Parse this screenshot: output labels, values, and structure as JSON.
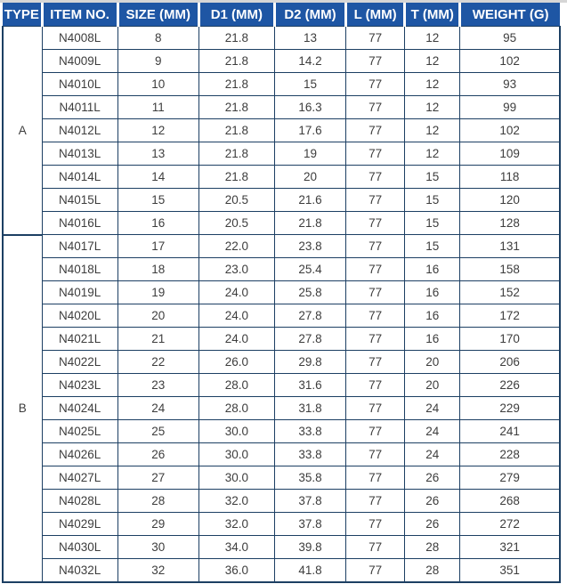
{
  "table": {
    "columns": [
      "TYPE",
      "ITEM NO.",
      "SIZE (MM)",
      "D1 (MM)",
      "D2 (MM)",
      "L (MM)",
      "T (MM)",
      "WEIGHT (G)"
    ],
    "column_keys": [
      "type",
      "item-no",
      "size-mm",
      "d1-mm",
      "d2-mm",
      "l-mm",
      "t-mm",
      "weight-g"
    ],
    "sections": [
      {
        "type": "A",
        "rows": [
          [
            "N4008L",
            "8",
            "21.8",
            "13",
            "77",
            "12",
            "95"
          ],
          [
            "N4009L",
            "9",
            "21.8",
            "14.2",
            "77",
            "12",
            "102"
          ],
          [
            "N4010L",
            "10",
            "21.8",
            "15",
            "77",
            "12",
            "93"
          ],
          [
            "N4011L",
            "11",
            "21.8",
            "16.3",
            "77",
            "12",
            "99"
          ],
          [
            "N4012L",
            "12",
            "21.8",
            "17.6",
            "77",
            "12",
            "102"
          ],
          [
            "N4013L",
            "13",
            "21.8",
            "19",
            "77",
            "12",
            "109"
          ],
          [
            "N4014L",
            "14",
            "21.8",
            "20",
            "77",
            "15",
            "118"
          ],
          [
            "N4015L",
            "15",
            "20.5",
            "21.6",
            "77",
            "15",
            "120"
          ],
          [
            "N4016L",
            "16",
            "20.5",
            "21.8",
            "77",
            "15",
            "128"
          ]
        ]
      },
      {
        "type": "B",
        "rows": [
          [
            "N4017L",
            "17",
            "22.0",
            "23.8",
            "77",
            "15",
            "131"
          ],
          [
            "N4018L",
            "18",
            "23.0",
            "25.4",
            "77",
            "16",
            "158"
          ],
          [
            "N4019L",
            "19",
            "24.0",
            "25.8",
            "77",
            "16",
            "152"
          ],
          [
            "N4020L",
            "20",
            "24.0",
            "27.8",
            "77",
            "16",
            "172"
          ],
          [
            "N4021L",
            "21",
            "24.0",
            "27.8",
            "77",
            "16",
            "170"
          ],
          [
            "N4022L",
            "22",
            "26.0",
            "29.8",
            "77",
            "20",
            "206"
          ],
          [
            "N4023L",
            "23",
            "28.0",
            "31.6",
            "77",
            "20",
            "226"
          ],
          [
            "N4024L",
            "24",
            "28.0",
            "31.8",
            "77",
            "24",
            "229"
          ],
          [
            "N4025L",
            "25",
            "30.0",
            "33.8",
            "77",
            "24",
            "241"
          ],
          [
            "N4026L",
            "26",
            "30.0",
            "33.8",
            "77",
            "24",
            "228"
          ],
          [
            "N4027L",
            "27",
            "30.0",
            "35.8",
            "77",
            "26",
            "279"
          ],
          [
            "N4028L",
            "28",
            "32.0",
            "37.8",
            "77",
            "26",
            "268"
          ],
          [
            "N4029L",
            "29",
            "32.0",
            "37.8",
            "77",
            "26",
            "272"
          ],
          [
            "N4030L",
            "30",
            "34.0",
            "39.8",
            "77",
            "28",
            "321"
          ],
          [
            "N4032L",
            "32",
            "36.0",
            "41.8",
            "77",
            "28",
            "351"
          ]
        ]
      }
    ]
  },
  "chart_data": {
    "type": "table",
    "title": "",
    "columns": [
      "TYPE",
      "ITEM NO.",
      "SIZE (MM)",
      "D1 (MM)",
      "D2 (MM)",
      "L (MM)",
      "T (MM)",
      "WEIGHT (G)"
    ],
    "rows": [
      [
        "A",
        "N4008L",
        8,
        21.8,
        13,
        77,
        12,
        95
      ],
      [
        "A",
        "N4009L",
        9,
        21.8,
        14.2,
        77,
        12,
        102
      ],
      [
        "A",
        "N4010L",
        10,
        21.8,
        15,
        77,
        12,
        93
      ],
      [
        "A",
        "N4011L",
        11,
        21.8,
        16.3,
        77,
        12,
        99
      ],
      [
        "A",
        "N4012L",
        12,
        21.8,
        17.6,
        77,
        12,
        102
      ],
      [
        "A",
        "N4013L",
        13,
        21.8,
        19,
        77,
        12,
        109
      ],
      [
        "A",
        "N4014L",
        14,
        21.8,
        20,
        77,
        15,
        118
      ],
      [
        "A",
        "N4015L",
        15,
        20.5,
        21.6,
        77,
        15,
        120
      ],
      [
        "A",
        "N4016L",
        16,
        20.5,
        21.8,
        77,
        15,
        128
      ],
      [
        "B",
        "N4017L",
        17,
        22.0,
        23.8,
        77,
        15,
        131
      ],
      [
        "B",
        "N4018L",
        18,
        23.0,
        25.4,
        77,
        16,
        158
      ],
      [
        "B",
        "N4019L",
        19,
        24.0,
        25.8,
        77,
        16,
        152
      ],
      [
        "B",
        "N4020L",
        20,
        24.0,
        27.8,
        77,
        16,
        172
      ],
      [
        "B",
        "N4021L",
        21,
        24.0,
        27.8,
        77,
        16,
        170
      ],
      [
        "B",
        "N4022L",
        22,
        26.0,
        29.8,
        77,
        20,
        206
      ],
      [
        "B",
        "N4023L",
        23,
        28.0,
        31.6,
        77,
        20,
        226
      ],
      [
        "B",
        "N4024L",
        24,
        28.0,
        31.8,
        77,
        24,
        229
      ],
      [
        "B",
        "N4025L",
        25,
        30.0,
        33.8,
        77,
        24,
        241
      ],
      [
        "B",
        "N4026L",
        26,
        30.0,
        33.8,
        77,
        24,
        228
      ],
      [
        "B",
        "N4027L",
        27,
        30.0,
        35.8,
        77,
        26,
        279
      ],
      [
        "B",
        "N4028L",
        28,
        32.0,
        37.8,
        77,
        26,
        268
      ],
      [
        "B",
        "N4029L",
        29,
        32.0,
        37.8,
        77,
        26,
        272
      ],
      [
        "B",
        "N4030L",
        30,
        34.0,
        39.8,
        77,
        28,
        321
      ],
      [
        "B",
        "N4032L",
        32,
        36.0,
        41.8,
        77,
        28,
        351
      ]
    ]
  },
  "colors": {
    "header_bg": "#1e56a4",
    "header_text": "#ffffff",
    "grid_border": "#1c3f63",
    "body_text": "#3d3d3d",
    "top_strip": "#d6d6d6"
  }
}
